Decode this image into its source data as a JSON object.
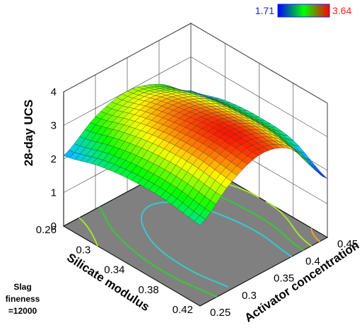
{
  "chart_data": {
    "type": "surface3d",
    "zlabel": "28-day UCS",
    "xlabel": "Activator concentration",
    "ylabel": "Silicate modulus",
    "x_ticks": [
      "0.25",
      "0.3",
      "0.35",
      "0.4",
      "0.45"
    ],
    "y_ticks": [
      "0.26",
      "0.3",
      "0.34",
      "0.38",
      "0.42"
    ],
    "z_ticks": [
      "0",
      "1",
      "2",
      "3",
      "4"
    ],
    "xlim": [
      0.25,
      0.45
    ],
    "ylim": [
      0.26,
      0.42
    ],
    "zlim": [
      0,
      4
    ],
    "fixed_factor": {
      "lines": [
        "Slag",
        "fineness",
        "=12000"
      ]
    },
    "colorbar": {
      "min_label": "1.71",
      "max_label": "3.64",
      "min": 1.71,
      "max": 3.64,
      "colors": [
        "#0000ff",
        "#00ff00",
        "#ff0000"
      ]
    },
    "surface": {
      "activator_concentration": [
        0.25,
        0.3,
        0.35,
        0.4,
        0.45
      ],
      "silicate_modulus": [
        0.26,
        0.3,
        0.34,
        0.38,
        0.42
      ],
      "ucs": [
        [
          2.1,
          2.75,
          3.0,
          2.7,
          2.0
        ],
        [
          2.4,
          3.05,
          3.3,
          3.0,
          2.3
        ],
        [
          2.55,
          3.25,
          3.5,
          3.15,
          2.4
        ],
        [
          2.55,
          3.3,
          3.6,
          3.2,
          2.3
        ],
        [
          2.4,
          3.2,
          3.55,
          3.1,
          1.75
        ]
      ]
    },
    "floor_color": "#808080",
    "contour_levels": [
      2.0,
      2.4,
      2.8,
      3.2
    ]
  }
}
